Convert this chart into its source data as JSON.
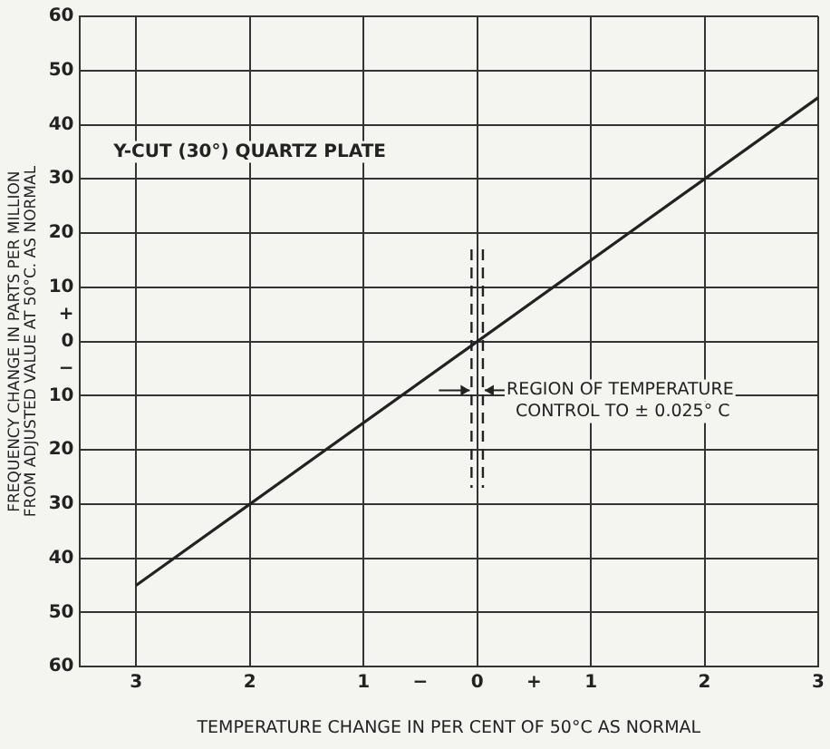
{
  "chart_data": {
    "type": "line",
    "title": "Y-CUT (30°) QUARTZ PLATE",
    "xlabel": "TEMPERATURE CHANGE IN PER CENT OF 50°C AS NORMAL",
    "ylabel": "FREQUENCY CHANGE IN PARTS PER MILLION\nFROM ADJUSTED VALUE AT 50°C. AS NORMAL",
    "series": [
      {
        "color": "#222222",
        "x": [
          -3,
          3
        ],
        "values": [
          -45,
          45
        ]
      }
    ],
    "xlim": [
      -3.5,
      3
    ],
    "xticks": [
      {
        "value": -3,
        "label": "3"
      },
      {
        "value": -2,
        "label": "2"
      },
      {
        "value": -1,
        "label": "1"
      },
      {
        "value": -0.5,
        "label": "−"
      },
      0,
      {
        "value": 0.5,
        "label": "+"
      },
      1,
      2,
      3
    ],
    "ylim": [
      -60,
      60
    ],
    "yticks": [
      {
        "value": -60,
        "label": "60"
      },
      {
        "value": -50,
        "label": "50"
      },
      {
        "value": -40,
        "label": "40"
      },
      {
        "value": -30,
        "label": "30"
      },
      {
        "value": -20,
        "label": "20"
      },
      {
        "value": -10,
        "label": "10"
      },
      {
        "value": -5,
        "label": "−"
      },
      0,
      {
        "value": 5,
        "label": "+"
      },
      10,
      20,
      30,
      40,
      50,
      60
    ],
    "ref_lines": [
      {
        "axis": "x",
        "value": -0.05,
        "color": "#222222",
        "line_style": "dashed"
      },
      {
        "axis": "x",
        "value": 0.05,
        "label": "REGION OF TEMPERATURE CONTROL TO ± 0.025° C",
        "color": "#222222",
        "line_style": "dashed"
      }
    ],
    "grid": true,
    "legend": false,
    "marker": "none",
    "line_style": "solid"
  }
}
